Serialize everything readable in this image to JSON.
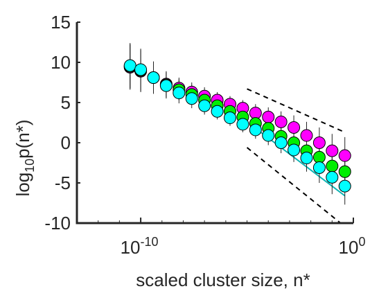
{
  "chart_data": {
    "type": "scatter",
    "xlabel": "scaled cluster size, n*",
    "ylabel_main": "log",
    "ylabel_sub": "10",
    "ylabel_tail": "p(n*)",
    "x_scale": "log",
    "xlim": [
      -13,
      0
    ],
    "ylim": [
      -10,
      15
    ],
    "x_ticks": [
      {
        "value": -10,
        "base": "10",
        "exp": "-10"
      },
      {
        "value": 0,
        "base": "10",
        "exp": "0"
      }
    ],
    "y_ticks": [
      {
        "value": 15,
        "label": "15"
      },
      {
        "value": 10,
        "label": "10"
      },
      {
        "value": 5,
        "label": "5"
      },
      {
        "value": 0,
        "label": "0"
      },
      {
        "value": -5,
        "label": "-5"
      },
      {
        "value": -10,
        "label": "-10"
      }
    ],
    "grid": false,
    "legend": "none",
    "x": [
      -10.5,
      -10.0,
      -9.4,
      -8.8,
      -8.2,
      -7.6,
      -7.0,
      -6.4,
      -5.8,
      -5.2,
      -4.6,
      -4.0,
      -3.4,
      -2.8,
      -2.2,
      -1.6,
      -1.0,
      -0.4
    ],
    "series": [
      {
        "color": "#ff00ff",
        "values": [
          9.4,
          8.9,
          8.1,
          7.3,
          6.8,
          6.3,
          5.8,
          5.3,
          4.8,
          4.3,
          3.7,
          3.2,
          2.6,
          1.9,
          0.9,
          0.0,
          -1.0,
          -1.6
        ]
      },
      {
        "color": "#00ee00",
        "values": [
          9.5,
          9.0,
          8.1,
          7.2,
          6.6,
          6.0,
          5.3,
          4.6,
          3.9,
          3.2,
          2.4,
          1.8,
          0.8,
          0.0,
          -1.0,
          -1.8,
          -2.9,
          -3.6
        ]
      },
      {
        "color": "#00ffff",
        "values": [
          9.6,
          9.1,
          8.1,
          7.1,
          6.2,
          5.5,
          4.6,
          3.9,
          3.1,
          2.3,
          1.6,
          0.9,
          0.0,
          -0.9,
          -1.9,
          -3.1,
          -4.3,
          -5.4
        ]
      }
    ],
    "error_half": [
      2.8,
      2.6,
      2.0,
      1.6,
      1.3,
      1.2,
      1.1,
      1.0,
      1.0,
      1.0,
      1.1,
      1.2,
      1.3,
      1.5,
      1.7,
      1.9,
      2.1,
      2.3
    ],
    "fit_line": {
      "color": "#0cb4b4",
      "x0": -4.6,
      "y0": 1.8,
      "x1": -0.4,
      "y1": -6.6
    },
    "ref_lines": [
      {
        "style": "dashed",
        "x0": -5.0,
        "y0": 6.7,
        "x1": -0.4,
        "y1": 1.3
      },
      {
        "style": "dashed",
        "x0": -5.0,
        "y0": -0.6,
        "x1": -0.6,
        "y1": -10.0
      }
    ]
  }
}
